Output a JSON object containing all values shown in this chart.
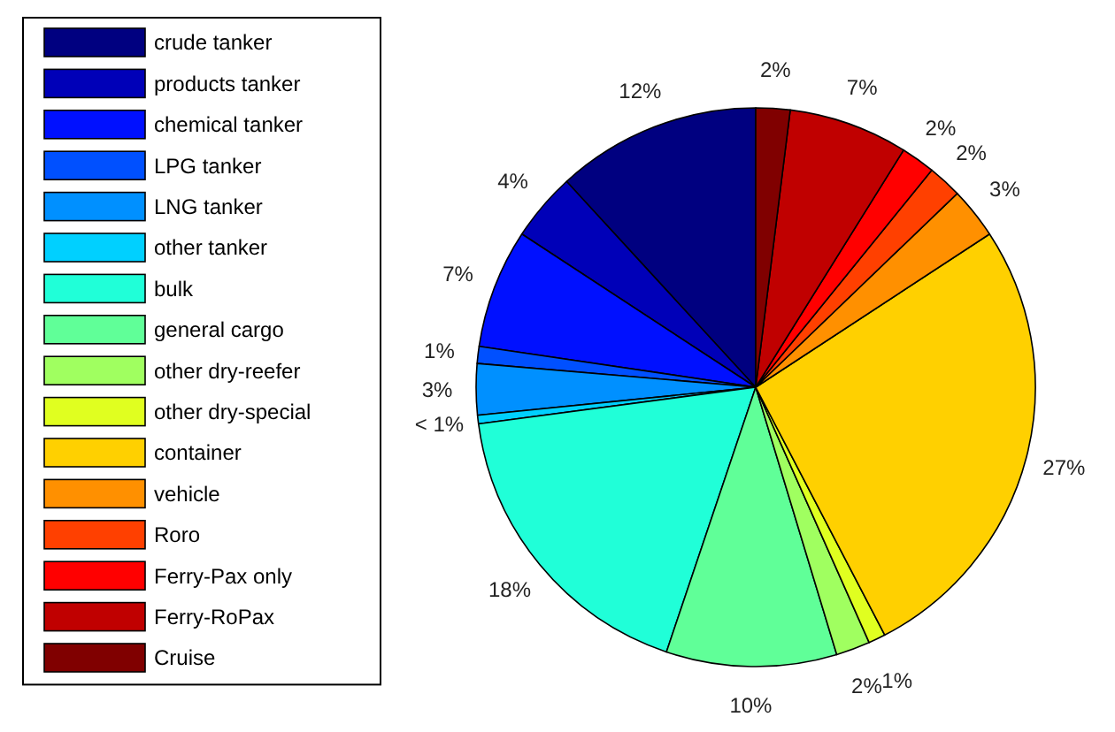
{
  "chart_data": {
    "type": "pie",
    "categories": [
      "crude tanker",
      "products tanker",
      "chemical tanker",
      "LPG tanker",
      "LNG tanker",
      "other tanker",
      "bulk",
      "general cargo",
      "other dry-reefer",
      "other dry-special",
      "container",
      "vehicle",
      "Roro",
      "Ferry-Pax only",
      "Ferry-RoPax",
      "Cruise"
    ],
    "values": [
      12,
      4,
      7,
      1,
      3,
      0.5,
      18,
      10,
      2,
      1,
      27,
      3,
      2,
      2,
      7,
      2
    ],
    "value_labels": [
      "12%",
      "4%",
      "7%",
      "1%",
      "3%",
      "< 1%",
      "18%",
      "10%",
      "2%",
      "1%",
      "27%",
      "3%",
      "2%",
      "2%",
      "7%",
      "2%"
    ],
    "colors": [
      "#000080",
      "#0000b8",
      "#0010ff",
      "#0050ff",
      "#0090ff",
      "#00d0ff",
      "#20ffd8",
      "#60ff98",
      "#a0ff60",
      "#e0ff20",
      "#ffd000",
      "#ff9000",
      "#ff4000",
      "#ff0000",
      "#c00000",
      "#800000"
    ],
    "legend": "left"
  }
}
